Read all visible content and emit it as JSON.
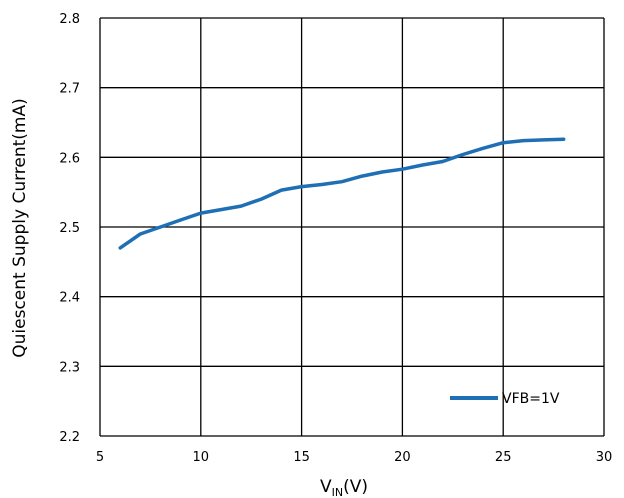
{
  "chart_data": {
    "type": "line",
    "title": "",
    "xlabel_main": "V",
    "xlabel_sub": "IN",
    "xlabel_unit": "(V)",
    "ylabel": "Quiescent Supply Current(mA)",
    "xlim": [
      5,
      30
    ],
    "ylim": [
      2.2,
      2.8
    ],
    "xticks": [
      "5",
      "10",
      "15",
      "20",
      "25",
      "30"
    ],
    "yticks": [
      "2.2",
      "2.3",
      "2.4",
      "2.5",
      "2.6",
      "2.7",
      "2.8"
    ],
    "grid": true,
    "legend_position": "bottom-right",
    "series": [
      {
        "name": "VFB=1V",
        "color": "#1f6fb5",
        "x": [
          6,
          7,
          8,
          9,
          10,
          11,
          12,
          13,
          14,
          15,
          16,
          17,
          18,
          19,
          20,
          21,
          22,
          23,
          24,
          25,
          26,
          27,
          28
        ],
        "y": [
          2.47,
          2.49,
          2.5,
          2.51,
          2.52,
          2.525,
          2.53,
          2.54,
          2.553,
          2.558,
          2.561,
          2.565,
          2.573,
          2.579,
          2.583,
          2.589,
          2.594,
          2.604,
          2.613,
          2.621,
          2.624,
          2.625,
          2.626
        ]
      }
    ]
  }
}
